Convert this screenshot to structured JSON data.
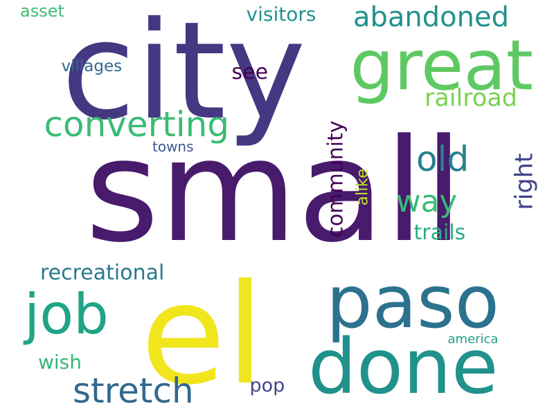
{
  "background": "#ffffff",
  "words": [
    {
      "text": "small",
      "color": "#481b6d"
    },
    {
      "text": "city",
      "color": "#453882"
    },
    {
      "text": "el",
      "color": "#f1e51d"
    },
    {
      "text": "paso",
      "color": "#2c728e"
    },
    {
      "text": "great",
      "color": "#5ec962"
    },
    {
      "text": "done",
      "color": "#21918c"
    },
    {
      "text": "job",
      "color": "#20a486"
    },
    {
      "text": "converting",
      "color": "#3bbb75"
    },
    {
      "text": "stretch",
      "color": "#31688e"
    },
    {
      "text": "abandoned",
      "color": "#21918c"
    },
    {
      "text": "railroad",
      "color": "#7ad151"
    },
    {
      "text": "old",
      "color": "#26828e"
    },
    {
      "text": "way",
      "color": "#3bbb75"
    },
    {
      "text": "right",
      "color": "#414487"
    },
    {
      "text": "recreational",
      "color": "#2a788e"
    },
    {
      "text": "community",
      "color": "#440154"
    },
    {
      "text": "visitors",
      "color": "#20938c"
    },
    {
      "text": "see",
      "color": "#440154"
    },
    {
      "text": "trails",
      "color": "#29af7f"
    },
    {
      "text": "alike",
      "color": "#bddf26"
    },
    {
      "text": "asset",
      "color": "#3fbc73"
    },
    {
      "text": "villages",
      "color": "#306a8e"
    },
    {
      "text": "towns",
      "color": "#38598c"
    },
    {
      "text": "wish",
      "color": "#35b779"
    },
    {
      "text": "pop",
      "color": "#414487"
    },
    {
      "text": "america",
      "color": "#1f9e89"
    }
  ]
}
